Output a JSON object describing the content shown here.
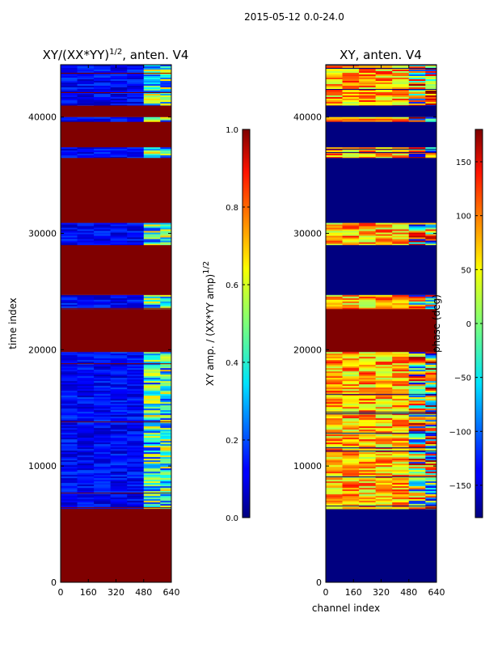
{
  "figure_title": "2015-05-12 0.0-24.0",
  "chart_data": [
    {
      "type": "heatmap",
      "title": "XY/(XX*YY)",
      "title_exponent": "1/2",
      "title_suffix": ", anten. V4",
      "xlabel": "",
      "ylabel": "time index",
      "x_ticks": [
        0,
        160,
        320,
        480,
        640
      ],
      "y_ticks": [
        0,
        10000,
        20000,
        30000,
        40000
      ],
      "xlim": [
        0,
        640
      ],
      "ylim": [
        0,
        44500
      ],
      "colormap": "jet",
      "colorbar": {
        "label": "XY amp. / (XX*YY amp)",
        "label_exponent": "1/2",
        "range": [
          0.0,
          1.0
        ],
        "ticks": [
          "0.0",
          "0.2",
          "0.4",
          "0.6",
          "0.8",
          "1.0"
        ]
      },
      "bands": [
        {
          "y0": 0,
          "y1": 6300,
          "kind": "flag",
          "value": 1.0
        },
        {
          "y0": 6300,
          "y1": 19800,
          "kind": "data",
          "value": 0.12
        },
        {
          "y0": 19800,
          "y1": 23500,
          "kind": "flag",
          "value": 1.0
        },
        {
          "y0": 23500,
          "y1": 24700,
          "kind": "data",
          "value": 0.12
        },
        {
          "y0": 24700,
          "y1": 29000,
          "kind": "flag",
          "value": 1.0
        },
        {
          "y0": 29000,
          "y1": 30900,
          "kind": "data",
          "value": 0.12
        },
        {
          "y0": 30900,
          "y1": 36500,
          "kind": "flag",
          "value": 1.0
        },
        {
          "y0": 36500,
          "y1": 37400,
          "kind": "data",
          "value": 0.12
        },
        {
          "y0": 37400,
          "y1": 39600,
          "kind": "flag",
          "value": 1.0
        },
        {
          "y0": 39600,
          "y1": 40000,
          "kind": "data",
          "value": 0.12
        },
        {
          "y0": 40000,
          "y1": 41000,
          "kind": "flag",
          "value": 1.0
        },
        {
          "y0": 41000,
          "y1": 44500,
          "kind": "data",
          "value": 0.12
        }
      ]
    },
    {
      "type": "heatmap",
      "title": "XY, anten. V4",
      "xlabel": "channel index",
      "ylabel": "",
      "x_ticks": [
        0,
        160,
        320,
        480,
        640
      ],
      "y_ticks": [
        0,
        10000,
        20000,
        30000,
        40000
      ],
      "xlim": [
        0,
        640
      ],
      "ylim": [
        0,
        44500
      ],
      "colormap": "jet",
      "colorbar": {
        "label": "phase (deg)",
        "range": [
          -180,
          180
        ],
        "ticks": [
          "150",
          "100",
          "50",
          "0",
          "−50",
          "−100",
          "−150"
        ],
        "tick_values": [
          150,
          100,
          50,
          0,
          -50,
          -100,
          -150
        ]
      },
      "bands": [
        {
          "y0": 0,
          "y1": 6300,
          "kind": "flag",
          "value": -180
        },
        {
          "y0": 6300,
          "y1": 19800,
          "kind": "data",
          "value": 40
        },
        {
          "y0": 19800,
          "y1": 23500,
          "kind": "flag",
          "value": 180
        },
        {
          "y0": 23500,
          "y1": 24700,
          "kind": "data",
          "value": 40
        },
        {
          "y0": 24700,
          "y1": 29000,
          "kind": "flag",
          "value": -180
        },
        {
          "y0": 29000,
          "y1": 30900,
          "kind": "data",
          "value": 40
        },
        {
          "y0": 30900,
          "y1": 36500,
          "kind": "flag",
          "value": -180
        },
        {
          "y0": 36500,
          "y1": 37400,
          "kind": "data",
          "value": 40
        },
        {
          "y0": 37400,
          "y1": 39600,
          "kind": "flag",
          "value": -180
        },
        {
          "y0": 39600,
          "y1": 40000,
          "kind": "data",
          "value": 40
        },
        {
          "y0": 40000,
          "y1": 41000,
          "kind": "flag",
          "value": -180
        },
        {
          "y0": 41000,
          "y1": 44500,
          "kind": "data",
          "value": 40
        }
      ]
    }
  ]
}
